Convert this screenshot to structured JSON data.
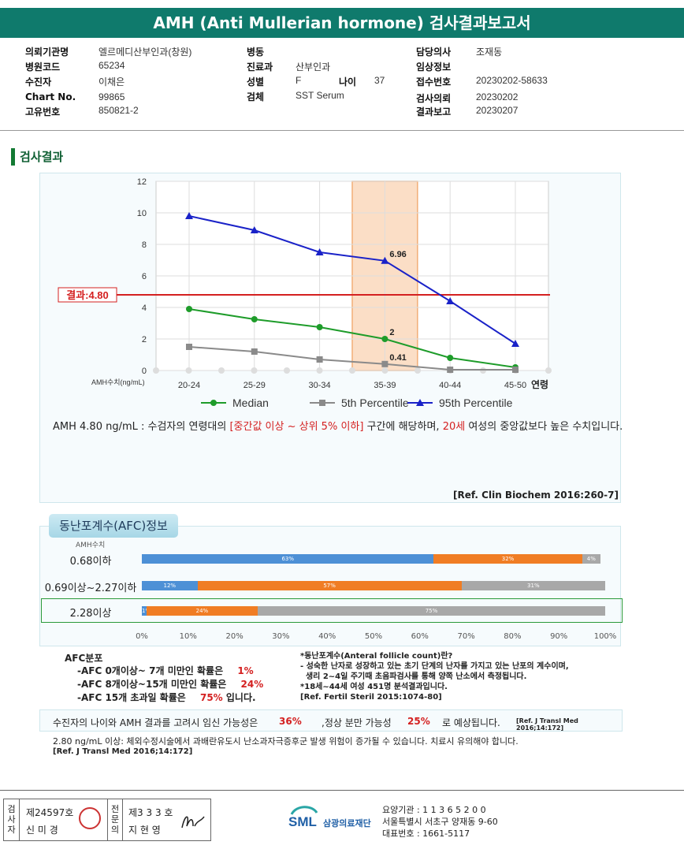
{
  "header": {
    "title": "AMH (Anti Mullerian hormone) 검사결과보고서"
  },
  "info": {
    "col1": [
      {
        "label": "의뢰기관명",
        "value": "엘르메디산부인과(창원)"
      },
      {
        "label": "병원코드",
        "value": "65234"
      },
      {
        "label": "수진자",
        "value": "이채은"
      },
      {
        "label": "Chart No.",
        "value": "99865"
      },
      {
        "label": "고유번호",
        "value": "850821-2"
      }
    ],
    "col2": [
      {
        "label": "병동",
        "value": ""
      },
      {
        "label": "진료과",
        "value": "산부인과"
      },
      {
        "label": "성별",
        "value": "F"
      },
      {
        "label": "검체",
        "value": "SST Serum"
      }
    ],
    "age_label": "나이",
    "age_value": "37",
    "col3": [
      {
        "label": "담당의사",
        "value": "조재동"
      },
      {
        "label": "임상정보",
        "value": ""
      },
      {
        "label": "접수번호",
        "value": "20230202-58633"
      },
      {
        "label": "검사의뢰",
        "value": "20230202"
      },
      {
        "label": "결과보고",
        "value": "20230207"
      }
    ]
  },
  "section_title": "검사결과",
  "chart_data": {
    "type": "line",
    "categories": [
      "20-24",
      "25-29",
      "30-34",
      "35-39",
      "40-44",
      "45-50"
    ],
    "x_axis_label": "연령",
    "y_axis_label": "AMH수치(ng/mL)",
    "ylim": [
      0,
      12
    ],
    "yticks": [
      "0",
      "2",
      "4",
      "6",
      "8",
      "10",
      "12"
    ],
    "grid": true,
    "highlight_category": "35-39",
    "result_line": {
      "value": 4.8,
      "label": "결과:4.80",
      "color": "#d42020"
    },
    "series": [
      {
        "name": "Median",
        "color": "#1e9c2a",
        "marker": "circle",
        "values": [
          3.9,
          3.25,
          2.75,
          2.0,
          0.8,
          0.2
        ]
      },
      {
        "name": "5th Percentile",
        "color": "#8a8a8a",
        "marker": "square",
        "values": [
          1.5,
          1.2,
          0.7,
          0.41,
          0.05,
          0.05
        ]
      },
      {
        "name": "95th Percentile",
        "color": "#1a22c8",
        "marker": "triangle",
        "values": [
          9.8,
          8.9,
          7.5,
          6.96,
          4.4,
          1.7
        ]
      }
    ],
    "data_labels": [
      {
        "series": 2,
        "index": 3,
        "text": "6.96"
      },
      {
        "series": 0,
        "index": 3,
        "text": "2"
      },
      {
        "series": 1,
        "index": 3,
        "text": "0.41"
      }
    ],
    "legend_position": "bottom"
  },
  "description": {
    "prefix": "AMH  4.80 ng/mL : 수검자의 연령대의 ",
    "range_text": "[중간값 이상 ~ 상위 5% 이하]",
    "middle": " 구간에 해당하며, ",
    "age_text": "20세",
    "suffix": " 여성의 중앙값보다 높은 수치입니다."
  },
  "ref_chart": "[Ref. Clin Biochem 2016:260-7]",
  "afc": {
    "tab_title": "동난포계수(AFC)정보",
    "amh_header": "AMH수치",
    "colors": [
      "#4d90d6",
      "#f07d24",
      "#a8a8a8"
    ],
    "rows": [
      {
        "label": "0.68이하",
        "segments": [
          63,
          32,
          4
        ],
        "texts": [
          "63%",
          "32%",
          "4%"
        ],
        "highlight": false
      },
      {
        "label": "0.69이상~2.27이하",
        "segments": [
          12,
          57,
          31
        ],
        "texts": [
          "12%",
          "57%",
          "31%"
        ],
        "highlight": false
      },
      {
        "label": "2.28이상",
        "segments": [
          1,
          24,
          75
        ],
        "texts": [
          "1%",
          "24%",
          "75%"
        ],
        "highlight": true
      }
    ],
    "ticks": [
      "0%",
      "10%",
      "20%",
      "30%",
      "40%",
      "50%",
      "60%",
      "70%",
      "80%",
      "90%",
      "100%"
    ],
    "dist_title": "AFC분포",
    "dist": [
      {
        "text": "-AFC  0개이상~ 7개 미만인 확률은",
        "value": "1%",
        "tail": ""
      },
      {
        "text": "-AFC  8개이상~15개 미만인 확률은",
        "value": "24%",
        "tail": ""
      },
      {
        "text": "-AFC  15개 초과일 확률은",
        "value": "75%",
        "tail": " 입니다."
      }
    ],
    "notes": [
      "*동난포계수(Anteral follicle count)란?",
      "- 성숙한 난자로 성장하고 있는 초기 단계의 난자를 가지고 있는 난포의 계수이며,",
      "  생리 2~4일 주기때 초음파검사를 통해 양쪽 난소에서 측정됩니다.",
      "*18세~44세 여성 451명 분석결과입니다.",
      "[Ref. Fertil Steril 2015:1074-80]"
    ]
  },
  "probability": {
    "prefix": "수진자의 나이와 AMH 결과를 고려시 임신 가능성은",
    "preg": "36%",
    "middle": ",정상 분만 가능성",
    "birth": "25%",
    "suffix": "로 예상됩니다.",
    "ref": "[Ref. J Transl Med 2016;14:172]"
  },
  "warning": {
    "text": "2.80  ng/mL  이상: 체외수정시술에서 과배란유도시 난소과자극증후군 발생 위험이 증가될 수 있습니다. 치료시 유의해야 합니다.",
    "ref": "[Ref. J Transl Med 2016;14:172]"
  },
  "footer": {
    "tester_label": "검사자",
    "tester_no": "제24597호",
    "tester_name": "신 미 경",
    "specialist_label": "전문의",
    "specialist_no": "제3 3 3 호",
    "specialist_name": "지 현 영",
    "logo_text": "SML",
    "org_name": "삼광의료재단",
    "lines": [
      "요양기관 : 1 1 3 6 5 2 0 0",
      "서울특별시 서초구 양재동 9-60",
      "대표번호 : 1661-5117"
    ]
  }
}
